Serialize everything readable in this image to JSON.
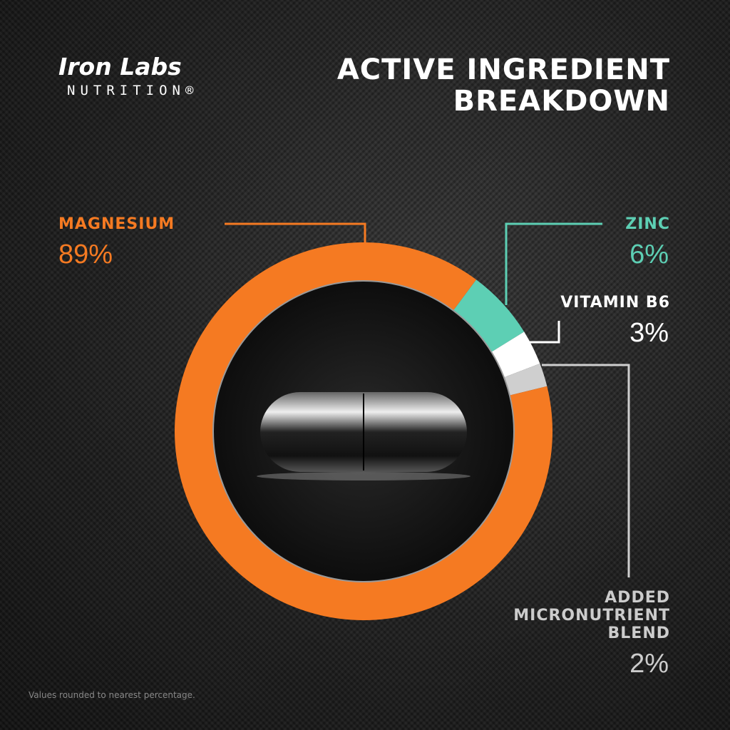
{
  "brand": {
    "name": "Iron Labs",
    "sub": "NUTRITION®"
  },
  "title": [
    "ACTIVE INGREDIENT",
    "BREAKDOWN"
  ],
  "chart_data": {
    "type": "pie",
    "title": "ACTIVE INGREDIENT BREAKDOWN",
    "slices": [
      {
        "label": "MAGNESIUM",
        "value": 89,
        "display": "89%",
        "color": "#f57a22"
      },
      {
        "label": "ZINC",
        "value": 6,
        "display": "6%",
        "color": "#5dcfb4"
      },
      {
        "label": "VITAMIN B6",
        "value": 3,
        "display": "3%",
        "color": "#ffffff"
      },
      {
        "label": "ADDED MICRONUTRIENT BLEND",
        "value": 2,
        "display": "2%",
        "color": "#cfcfcf"
      }
    ]
  },
  "footnote": "Values rounded to nearest percentage."
}
